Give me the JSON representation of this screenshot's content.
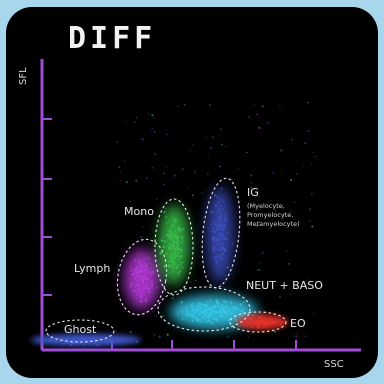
{
  "chart_data": {
    "type": "scatter",
    "title": "DIFF",
    "xlabel": "SSC",
    "ylabel": "SFL",
    "grid": false,
    "colors": {
      "axis": "#a24bd6",
      "ghost": "#3f57c9",
      "lymph": "#b43ad6",
      "mono": "#39b94a",
      "ig": "#3d4fc0",
      "neut_baso": "#35c6e6",
      "eo": "#e2332b"
    },
    "series": [
      {
        "name": "Ghost"
      },
      {
        "name": "Lymph"
      },
      {
        "name": "Mono"
      },
      {
        "name": "IG",
        "detail": [
          "(Myelocyte,",
          "Promyelocyte,",
          "Metamyelocyte)"
        ]
      },
      {
        "name": "NEUT + BASO"
      },
      {
        "name": "EO"
      }
    ]
  }
}
